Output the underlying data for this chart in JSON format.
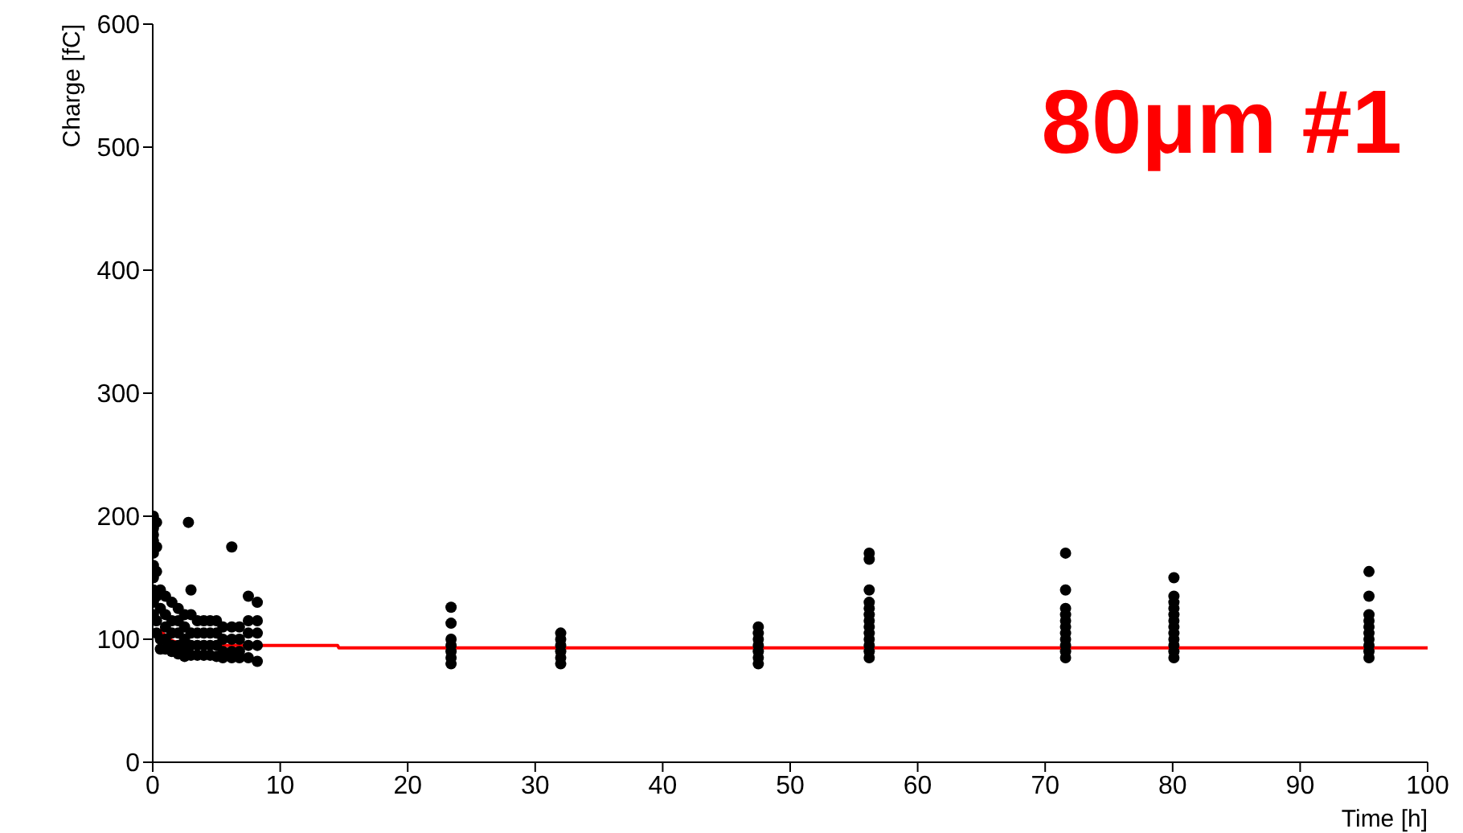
{
  "chart_data": {
    "type": "scatter",
    "xlabel": "Time [h]",
    "ylabel": "Charge [fC]",
    "annotations": [
      "80μm #1"
    ],
    "xlim": [
      0,
      100
    ],
    "ylim": [
      0,
      600
    ],
    "xticks": [
      0,
      10,
      20,
      30,
      40,
      50,
      60,
      70,
      80,
      90,
      100
    ],
    "yticks": [
      0,
      100,
      200,
      300,
      400,
      500,
      600
    ],
    "series": [
      {
        "color": "#000000",
        "marker": "circle",
        "x": [
          0.05,
          0.05,
          0.05,
          0.05,
          0.05,
          0.05,
          0.05,
          0.05,
          0.05,
          0.05,
          0.3,
          0.3,
          0.3,
          0.3,
          0.3,
          0.3,
          0.6,
          0.6,
          0.6,
          0.6,
          1,
          1,
          1,
          1,
          1,
          1.5,
          1.5,
          1.5,
          1.5,
          1.5,
          2,
          2,
          2,
          2,
          2,
          2.5,
          2.5,
          2.5,
          2.5,
          2.5,
          2.8,
          3,
          3,
          3,
          3,
          3,
          3.5,
          3.5,
          3.5,
          3.5,
          4,
          4,
          4,
          4,
          4.5,
          4.5,
          4.5,
          4.5,
          5,
          5,
          5,
          5,
          5.5,
          5.5,
          5.5,
          5.5,
          6.2,
          6.2,
          6.2,
          6.2,
          6.2,
          6.8,
          6.8,
          6.8,
          6.8,
          7.5,
          7.5,
          7.5,
          7.5,
          7.5,
          8.2,
          8.2,
          8.2,
          8.2,
          8.2,
          23.4,
          23.4,
          23.4,
          23.4,
          23.4,
          23.4,
          23.4,
          32,
          32,
          32,
          32,
          32,
          32,
          47.5,
          47.5,
          47.5,
          47.5,
          47.5,
          47.5,
          47.5,
          56.2,
          56.2,
          56.2,
          56.2,
          56.2,
          56.2,
          56.2,
          56.2,
          56.2,
          56.2,
          56.2,
          56.2,
          56.2,
          71.6,
          71.6,
          71.6,
          71.6,
          71.6,
          71.6,
          71.6,
          71.6,
          71.6,
          71.6,
          71.6,
          80.1,
          80.1,
          80.1,
          80.1,
          80.1,
          80.1,
          80.1,
          80.1,
          80.1,
          80.1,
          80.1,
          80.1,
          95.4,
          95.4,
          95.4,
          95.4,
          95.4,
          95.4,
          95.4,
          95.4,
          95.4,
          95.4
        ],
        "values": [
          200,
          190,
          185,
          180,
          170,
          160,
          150,
          140,
          130,
          120,
          195,
          175,
          155,
          135,
          115,
          105,
          140,
          125,
          100,
          92,
          135,
          120,
          110,
          100,
          92,
          130,
          115,
          105,
          95,
          90,
          125,
          115,
          105,
          95,
          88,
          120,
          110,
          100,
          92,
          86,
          195,
          140,
          120,
          105,
          95,
          87,
          115,
          105,
          95,
          87,
          115,
          105,
          95,
          87,
          115,
          105,
          95,
          87,
          115,
          105,
          95,
          86,
          110,
          100,
          90,
          85,
          175,
          110,
          100,
          90,
          85,
          110,
          100,
          90,
          85,
          135,
          115,
          105,
          95,
          85,
          130,
          115,
          105,
          95,
          82,
          126,
          113,
          100,
          95,
          90,
          85,
          80,
          105,
          100,
          95,
          90,
          85,
          80,
          110,
          105,
          100,
          95,
          90,
          85,
          80,
          170,
          165,
          140,
          130,
          125,
          120,
          115,
          110,
          105,
          100,
          95,
          90,
          85,
          170,
          140,
          125,
          120,
          115,
          110,
          105,
          100,
          95,
          90,
          85,
          150,
          135,
          130,
          125,
          120,
          115,
          110,
          105,
          100,
          95,
          90,
          85,
          155,
          135,
          120,
          115,
          110,
          105,
          100,
          95,
          90,
          85
        ]
      },
      {
        "type": "line",
        "color": "#ff0000",
        "marker": "none",
        "line_style": "solid",
        "x": [
          0.5,
          1,
          1.5,
          2,
          5,
          14.5,
          14.6,
          100
        ],
        "values": [
          108,
          103,
          99,
          97,
          95,
          95,
          93,
          93
        ]
      }
    ]
  }
}
